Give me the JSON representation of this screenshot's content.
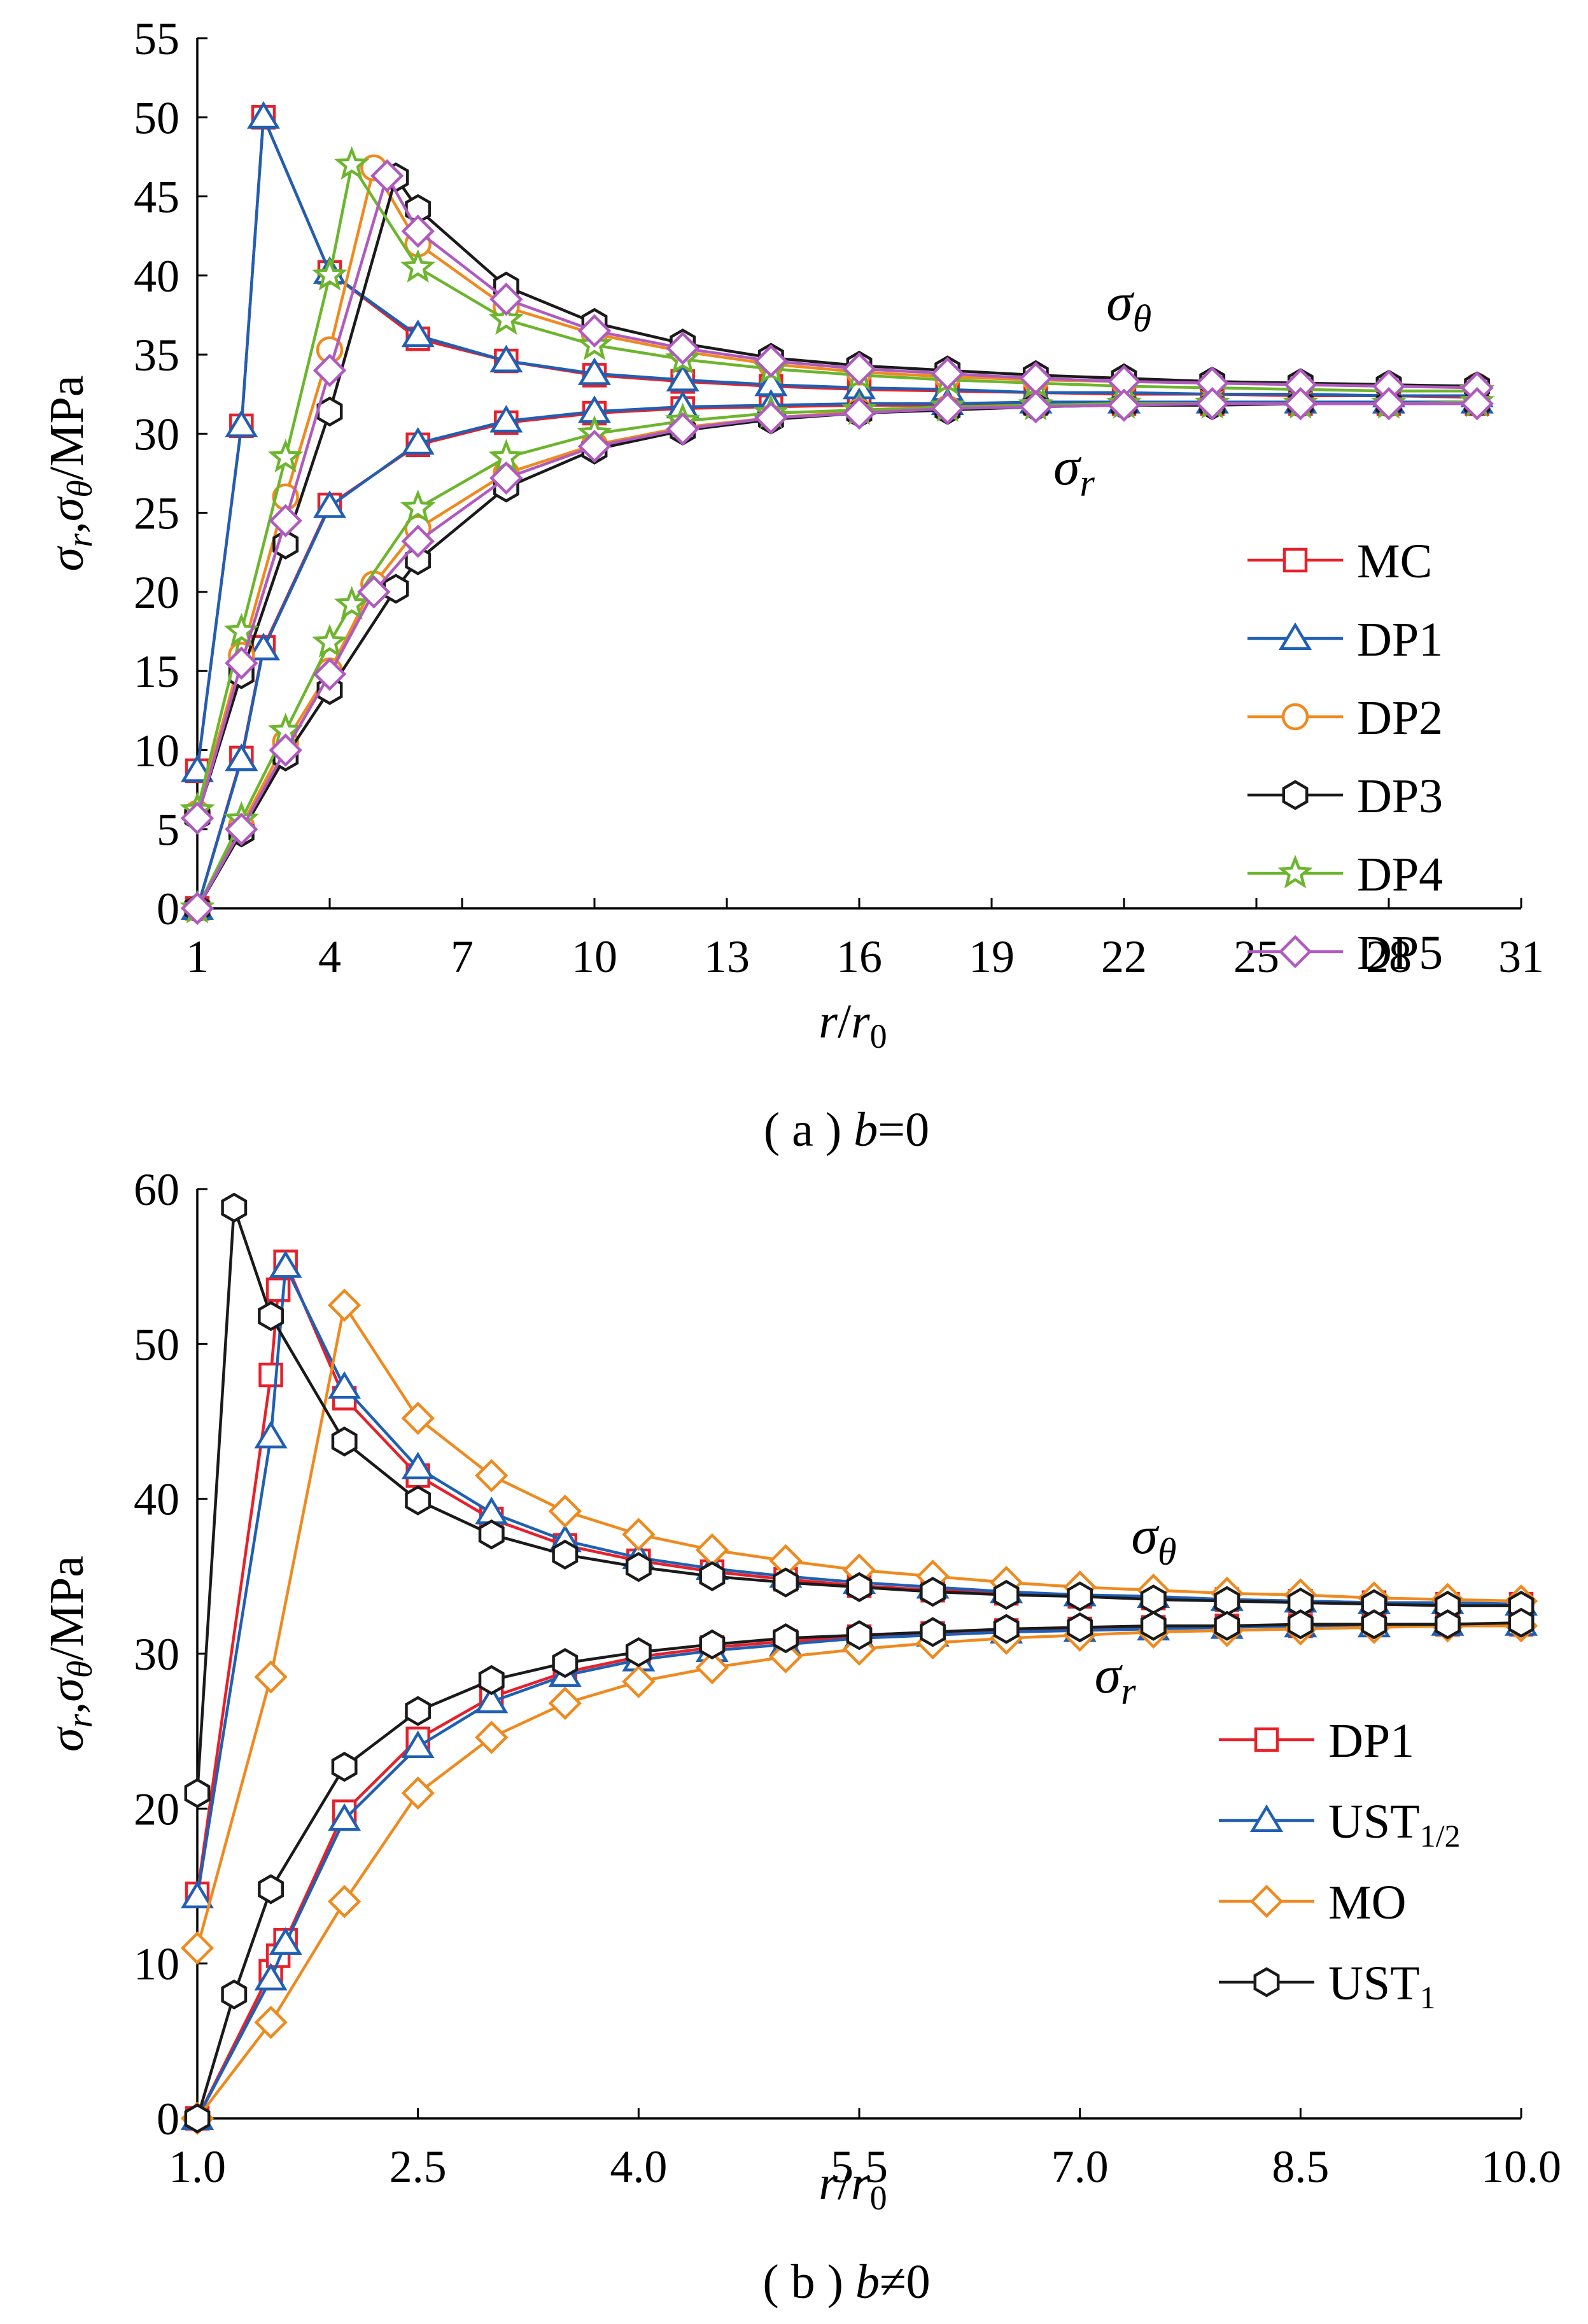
{
  "chart_data": [
    {
      "id": "a",
      "type": "line",
      "ylabel": "σr,σθ/MPa",
      "ylabel_parts": {
        "sigma": "σ",
        "r": "r",
        "comma": ",",
        "theta": "θ",
        "unit": "/MPa"
      },
      "xlabel_parts": {
        "r": "r",
        "slash": "/",
        "r0": "r",
        "sub0": "0"
      },
      "caption_parts": {
        "prefix": "( a ) ",
        "var": "b",
        "rest": "=0"
      },
      "xlim": [
        1,
        31
      ],
      "ylim": [
        0,
        55
      ],
      "xticks": [
        "1",
        "4",
        "7",
        "10",
        "13",
        "16",
        "19",
        "22",
        "25",
        "28",
        "31"
      ],
      "yticks": [
        "0",
        "5",
        "10",
        "15",
        "20",
        "25",
        "30",
        "35",
        "40",
        "45",
        "50",
        "55"
      ],
      "annotations": [
        {
          "name": "sigma-theta",
          "base": "σ",
          "sub": "θ",
          "x": 21.6,
          "y": 37.2
        },
        {
          "name": "sigma-r",
          "base": "σ",
          "sub": "r",
          "x": 20.4,
          "y": 26.8
        }
      ],
      "legend_position": "right-lower",
      "series": [
        {
          "name": "MC",
          "color": "#e8202a",
          "marker": "square",
          "theta": {
            "x": [
              1,
              2,
              2.5,
              4,
              6,
              8,
              10,
              12,
              14,
              16,
              18,
              20,
              22,
              24,
              26,
              28,
              30
            ],
            "y": [
              8.7,
              30.5,
              50,
              40.2,
              36,
              34.6,
              33.7,
              33.3,
              33,
              32.8,
              32.7,
              32.6,
              32.5,
              32.5,
              32.4,
              32.4,
              32.3
            ]
          },
          "r": {
            "x": [
              1,
              2,
              2.5,
              4,
              6,
              8,
              10,
              12,
              14,
              16,
              18,
              20,
              22,
              24,
              26,
              28,
              30
            ],
            "y": [
              0,
              9.5,
              16.5,
              25.5,
              29.3,
              30.7,
              31.3,
              31.6,
              31.7,
              31.8,
              31.8,
              31.9,
              31.9,
              31.9,
              31.9,
              31.9,
              31.9
            ]
          }
        },
        {
          "name": "DP1",
          "color": "#1f5fb4",
          "marker": "triangle",
          "theta": {
            "x": [
              1,
              2,
              2.5,
              4,
              6,
              8,
              10,
              12,
              14,
              16,
              18,
              20,
              22,
              24,
              26,
              28,
              30
            ],
            "y": [
              8.7,
              30.5,
              50,
              40.2,
              36.2,
              34.6,
              33.8,
              33.4,
              33.1,
              32.9,
              32.8,
              32.6,
              32.6,
              32.5,
              32.5,
              32.4,
              32.4
            ]
          },
          "r": {
            "x": [
              1,
              2,
              2.5,
              4,
              6,
              8,
              10,
              12,
              14,
              16,
              18,
              20,
              22,
              24,
              26,
              28,
              30
            ],
            "y": [
              0,
              9.4,
              16.4,
              25.4,
              29.4,
              30.8,
              31.4,
              31.7,
              31.8,
              31.9,
              31.9,
              32,
              32,
              32,
              32,
              32,
              32
            ]
          }
        },
        {
          "name": "DP2",
          "color": "#ef8a1f",
          "marker": "circle",
          "theta": {
            "x": [
              1,
              2,
              3,
              4,
              5,
              6,
              8,
              10,
              12,
              14,
              16,
              18,
              20,
              22,
              24,
              26,
              28,
              30
            ],
            "y": [
              6,
              16,
              26,
              35.3,
              46.8,
              42,
              38,
              36.3,
              35.2,
              34.4,
              33.9,
              33.6,
              33.4,
              33.3,
              33.2,
              33.1,
              33,
              33
            ]
          },
          "r": {
            "x": [
              1,
              2,
              3,
              4,
              5,
              6,
              8,
              10,
              12,
              14,
              16,
              18,
              20,
              22,
              24,
              26,
              28,
              30
            ],
            "y": [
              0,
              5.2,
              10.5,
              15,
              20.5,
              24,
              27.5,
              29.3,
              30.4,
              31,
              31.4,
              31.6,
              31.8,
              31.9,
              31.9,
              31.9,
              31.9,
              32
            ]
          }
        },
        {
          "name": "DP3",
          "color": "#1a1a1a",
          "marker": "hexagon",
          "theta": {
            "x": [
              1,
              2,
              3,
              4,
              5.5,
              6,
              8,
              10,
              12,
              14,
              16,
              18,
              20,
              22,
              24,
              26,
              28,
              30
            ],
            "y": [
              5.8,
              14.8,
              23,
              31.4,
              46.2,
              44.2,
              39.3,
              37,
              35.7,
              34.8,
              34.3,
              34,
              33.7,
              33.5,
              33.3,
              33.2,
              33.1,
              33
            ]
          },
          "r": {
            "x": [
              1,
              2,
              3,
              4,
              5.5,
              6,
              8,
              10,
              12,
              14,
              16,
              18,
              20,
              22,
              24,
              26,
              28,
              30
            ],
            "y": [
              0,
              4.8,
              9.6,
              13.8,
              20.2,
              22,
              26.6,
              29,
              30.2,
              30.9,
              31.3,
              31.5,
              31.7,
              31.8,
              31.8,
              31.9,
              31.9,
              31.9
            ]
          }
        },
        {
          "name": "DP4",
          "color": "#6cb52d",
          "marker": "star",
          "theta": {
            "x": [
              1,
              2,
              3,
              4,
              4.5,
              6,
              8,
              10,
              12,
              14,
              16,
              18,
              20,
              22,
              24,
              26,
              28,
              30
            ],
            "y": [
              6.2,
              17.5,
              28.5,
              40,
              47,
              40.5,
              37.2,
              35.6,
              34.7,
              34.1,
              33.7,
              33.4,
              33.2,
              33,
              32.9,
              32.8,
              32.7,
              32.7
            ]
          },
          "r": {
            "x": [
              1,
              2,
              3,
              4,
              4.5,
              6,
              8,
              10,
              12,
              14,
              16,
              18,
              20,
              22,
              24,
              26,
              28,
              30
            ],
            "y": [
              0,
              5.6,
              11.2,
              16.8,
              19.2,
              25.3,
              28.5,
              30,
              30.8,
              31.3,
              31.5,
              31.7,
              31.8,
              31.9,
              31.9,
              31.9,
              31.9,
              32
            ]
          }
        },
        {
          "name": "DP5",
          "color": "#b05ac0",
          "marker": "diamond",
          "theta": {
            "x": [
              1,
              2,
              3,
              4,
              5.3,
              6,
              8,
              10,
              12,
              14,
              16,
              18,
              20,
              22,
              24,
              26,
              28,
              30
            ],
            "y": [
              5.7,
              15.5,
              24.5,
              34,
              46.3,
              42.8,
              38.5,
              36.5,
              35.4,
              34.6,
              34.1,
              33.8,
              33.5,
              33.3,
              33.2,
              33.1,
              33,
              32.9
            ]
          },
          "r": {
            "x": [
              1,
              2,
              3,
              4,
              5,
              6,
              8,
              10,
              12,
              14,
              16,
              18,
              20,
              22,
              24,
              26,
              28,
              30
            ],
            "y": [
              0,
              5,
              10,
              14.8,
              20,
              23.2,
              27.2,
              29.2,
              30.3,
              31,
              31.3,
              31.6,
              31.7,
              31.8,
              31.9,
              31.9,
              31.9,
              31.9
            ]
          }
        }
      ]
    },
    {
      "id": "b",
      "type": "line",
      "ylabel": "σr,σθ/MPa",
      "ylabel_parts": {
        "sigma": "σ",
        "r": "r",
        "comma": ",",
        "theta": "θ",
        "unit": "/MPa"
      },
      "xlabel_parts": {
        "r": "r",
        "slash": "/",
        "r0": "r",
        "sub0": "0"
      },
      "caption_parts": {
        "prefix": "( b ) ",
        "var": "b",
        "rest": "≠0"
      },
      "xlim": [
        1,
        10
      ],
      "ylim": [
        0,
        60
      ],
      "xticks": [
        "1.0",
        "2.5",
        "4.0",
        "5.5",
        "7.0",
        "8.5",
        "10.0"
      ],
      "yticks": [
        "0",
        "10",
        "20",
        "30",
        "40",
        "50",
        "60"
      ],
      "annotations": [
        {
          "name": "sigma-theta",
          "base": "σ",
          "sub": "θ",
          "x": 7.35,
          "y": 36.5
        },
        {
          "name": "sigma-r",
          "base": "σ",
          "sub": "r",
          "x": 7.1,
          "y": 27.5
        }
      ],
      "legend_position": "right-lower",
      "series": [
        {
          "name": "DP1",
          "sub": "",
          "color": "#e8202a",
          "marker": "square",
          "theta": {
            "x": [
              1,
              1.5,
              1.55,
              1.6,
              2,
              2.5,
              3,
              3.5,
              4,
              4.5,
              5,
              5.5,
              6,
              6.5,
              7,
              7.5,
              8,
              8.5,
              9,
              9.5,
              10
            ],
            "y": [
              14.5,
              48,
              53.5,
              55.3,
              46.5,
              41.5,
              38.7,
              37,
              36,
              35.3,
              34.8,
              34.4,
              34.1,
              33.9,
              33.7,
              33.6,
              33.5,
              33.4,
              33.3,
              33.2,
              33.2
            ]
          },
          "r": {
            "x": [
              1,
              1.5,
              1.55,
              1.6,
              2,
              2.5,
              3,
              3.5,
              4,
              4.5,
              5,
              5.5,
              6,
              6.5,
              7,
              7.5,
              8,
              8.5,
              9,
              9.5,
              10
            ],
            "y": [
              0,
              9.5,
              10.5,
              11.5,
              19.8,
              24.5,
              27.2,
              28.8,
              29.8,
              30.4,
              30.8,
              31.1,
              31.3,
              31.5,
              31.6,
              31.7,
              31.8,
              31.8,
              31.9,
              31.9,
              31.9
            ]
          }
        },
        {
          "name": "UST",
          "sub": "1/2",
          "color": "#1f5fb4",
          "marker": "triangle",
          "theta": {
            "x": [
              1,
              1.5,
              1.6,
              2,
              2.5,
              3,
              3.5,
              4,
              4.5,
              5,
              5.5,
              6,
              6.5,
              7,
              7.5,
              8,
              8.5,
              9,
              9.5,
              10
            ],
            "y": [
              14.3,
              44,
              55,
              47.2,
              42,
              39.1,
              37.3,
              36.2,
              35.5,
              35,
              34.6,
              34.3,
              34,
              33.8,
              33.7,
              33.5,
              33.4,
              33.3,
              33.3,
              33.2
            ]
          },
          "r": {
            "x": [
              1,
              1.5,
              1.6,
              2,
              2.5,
              3,
              3.5,
              4,
              4.5,
              5,
              5.5,
              6,
              6.5,
              7,
              7.5,
              8,
              8.5,
              9,
              9.5,
              10
            ],
            "y": [
              0,
              9,
              11.3,
              19.3,
              24,
              26.9,
              28.6,
              29.6,
              30.2,
              30.6,
              31,
              31.2,
              31.4,
              31.5,
              31.6,
              31.7,
              31.8,
              31.8,
              31.9,
              31.9
            ]
          }
        },
        {
          "name": "MO",
          "sub": "",
          "color": "#ef8a1f",
          "marker": "diamond",
          "theta": {
            "x": [
              1,
              1.5,
              2,
              2.5,
              3,
              3.5,
              4,
              4.5,
              5,
              5.5,
              6,
              6.5,
              7,
              7.5,
              8,
              8.5,
              9,
              9.5,
              10
            ],
            "y": [
              11,
              28.5,
              52.5,
              45.2,
              41.5,
              39.2,
              37.7,
              36.7,
              36,
              35.4,
              35,
              34.6,
              34.3,
              34.1,
              33.9,
              33.8,
              33.6,
              33.5,
              33.4
            ]
          },
          "r": {
            "x": [
              1,
              1.5,
              2,
              2.5,
              3,
              3.5,
              4,
              4.5,
              5,
              5.5,
              6,
              6.5,
              7,
              7.5,
              8,
              8.5,
              9,
              9.5,
              10
            ],
            "y": [
              0,
              6.2,
              14,
              21,
              24.6,
              26.8,
              28.2,
              29.1,
              29.8,
              30.3,
              30.7,
              31,
              31.2,
              31.4,
              31.5,
              31.6,
              31.7,
              31.8,
              31.8
            ]
          }
        },
        {
          "name": "UST",
          "sub": "1",
          "color": "#1a1a1a",
          "marker": "hexagon",
          "theta": {
            "x": [
              1,
              1.25,
              1.5,
              2,
              2.5,
              3,
              3.5,
              4,
              4.5,
              5,
              5.5,
              6,
              6.5,
              7,
              7.5,
              8,
              8.5,
              9,
              9.5,
              10
            ],
            "y": [
              21,
              58.8,
              51.8,
              43.7,
              39.9,
              37.7,
              36.4,
              35.6,
              35,
              34.6,
              34.3,
              34,
              33.8,
              33.7,
              33.5,
              33.4,
              33.3,
              33.2,
              33.1,
              33.1
            ]
          },
          "r": {
            "x": [
              1,
              1.25,
              1.5,
              2,
              2.5,
              3,
              3.5,
              4,
              4.5,
              5,
              5.5,
              6,
              6.5,
              7,
              7.5,
              8,
              8.5,
              9,
              9.5,
              10
            ],
            "y": [
              0,
              8,
              14.8,
              22.7,
              26.3,
              28.3,
              29.4,
              30.1,
              30.6,
              31,
              31.2,
              31.4,
              31.6,
              31.7,
              31.8,
              31.8,
              31.9,
              31.9,
              31.9,
              32
            ]
          }
        }
      ]
    }
  ]
}
